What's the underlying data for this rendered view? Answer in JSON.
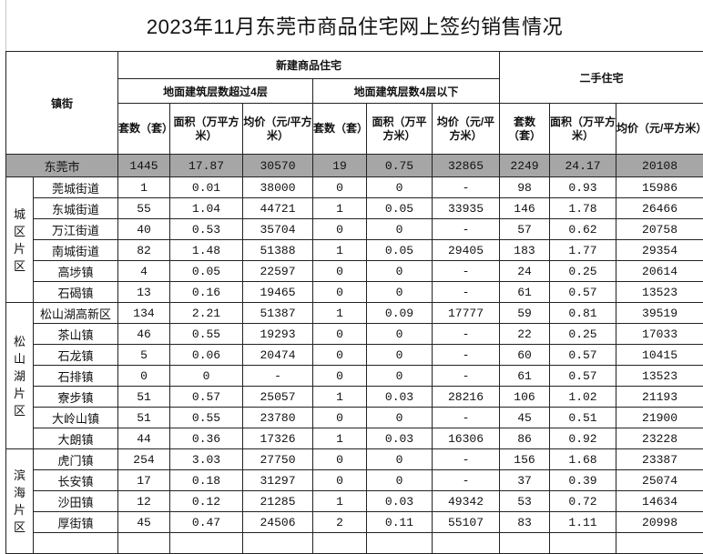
{
  "title": "2023年11月东莞市商品住宅网上签约销售情况",
  "headers": {
    "town": "镇街",
    "new_homes": "新建商品住宅",
    "above4": "地面建筑层数超过4层",
    "below4": "地面建筑层数4层以下",
    "resale": "二手住宅",
    "units": "套数（套）",
    "area": "面积（万平方米）",
    "price": "均价（元/平方米）"
  },
  "total": {
    "name": "东莞市",
    "values": [
      "1445",
      "17.87",
      "30570",
      "19",
      "0.75",
      "32865",
      "2249",
      "24.17",
      "20108"
    ]
  },
  "regions": [
    {
      "name": "城区片区",
      "rows": [
        {
          "name": "莞城街道",
          "values": [
            "1",
            "0.01",
            "38000",
            "0",
            "0",
            "-",
            "98",
            "0.93",
            "15986"
          ]
        },
        {
          "name": "东城街道",
          "values": [
            "55",
            "1.04",
            "44721",
            "1",
            "0.05",
            "33935",
            "146",
            "1.78",
            "26466"
          ]
        },
        {
          "name": "万江街道",
          "values": [
            "40",
            "0.53",
            "35704",
            "0",
            "0",
            "-",
            "57",
            "0.62",
            "20758"
          ]
        },
        {
          "name": "南城街道",
          "values": [
            "82",
            "1.48",
            "51388",
            "1",
            "0.05",
            "29405",
            "183",
            "1.77",
            "29354"
          ]
        },
        {
          "name": "高埗镇",
          "values": [
            "4",
            "0.05",
            "22597",
            "0",
            "0",
            "-",
            "24",
            "0.25",
            "20614"
          ]
        },
        {
          "name": "石碣镇",
          "values": [
            "13",
            "0.16",
            "19465",
            "0",
            "0",
            "-",
            "61",
            "0.57",
            "13523"
          ]
        }
      ]
    },
    {
      "name": "松山湖片区",
      "rows": [
        {
          "name": "松山湖高新区",
          "values": [
            "134",
            "2.21",
            "51387",
            "1",
            "0.09",
            "17777",
            "59",
            "0.81",
            "39519"
          ]
        },
        {
          "name": "茶山镇",
          "values": [
            "46",
            "0.55",
            "19293",
            "0",
            "0",
            "-",
            "22",
            "0.25",
            "17033"
          ]
        },
        {
          "name": "石龙镇",
          "values": [
            "5",
            "0.06",
            "20474",
            "0",
            "0",
            "-",
            "60",
            "0.57",
            "10415"
          ]
        },
        {
          "name": "石排镇",
          "values": [
            "0",
            "0",
            "-",
            "0",
            "0",
            "-",
            "61",
            "0.57",
            "13523"
          ]
        },
        {
          "name": "寮步镇",
          "values": [
            "51",
            "0.57",
            "25057",
            "1",
            "0.03",
            "28216",
            "106",
            "1.02",
            "21193"
          ]
        },
        {
          "name": "大岭山镇",
          "values": [
            "51",
            "0.55",
            "23780",
            "0",
            "0",
            "-",
            "45",
            "0.51",
            "21900"
          ]
        },
        {
          "name": "大朗镇",
          "values": [
            "44",
            "0.36",
            "17326",
            "1",
            "0.03",
            "16306",
            "86",
            "0.92",
            "23228"
          ]
        }
      ]
    },
    {
      "name": "滨海片区",
      "rows": [
        {
          "name": "虎门镇",
          "values": [
            "254",
            "3.03",
            "27750",
            "0",
            "0",
            "-",
            "156",
            "1.68",
            "23387"
          ]
        },
        {
          "name": "长安镇",
          "values": [
            "17",
            "0.18",
            "31297",
            "0",
            "0",
            "-",
            "37",
            "0.39",
            "25074"
          ]
        },
        {
          "name": "沙田镇",
          "values": [
            "12",
            "0.12",
            "21285",
            "1",
            "0.03",
            "49342",
            "53",
            "0.72",
            "14634"
          ]
        },
        {
          "name": "厚街镇",
          "values": [
            "45",
            "0.47",
            "24506",
            "2",
            "0.11",
            "55107",
            "83",
            "1.11",
            "20998"
          ]
        }
      ]
    }
  ],
  "colors": {
    "total_row_bg": "#a6a6a6",
    "border": "#222222"
  }
}
